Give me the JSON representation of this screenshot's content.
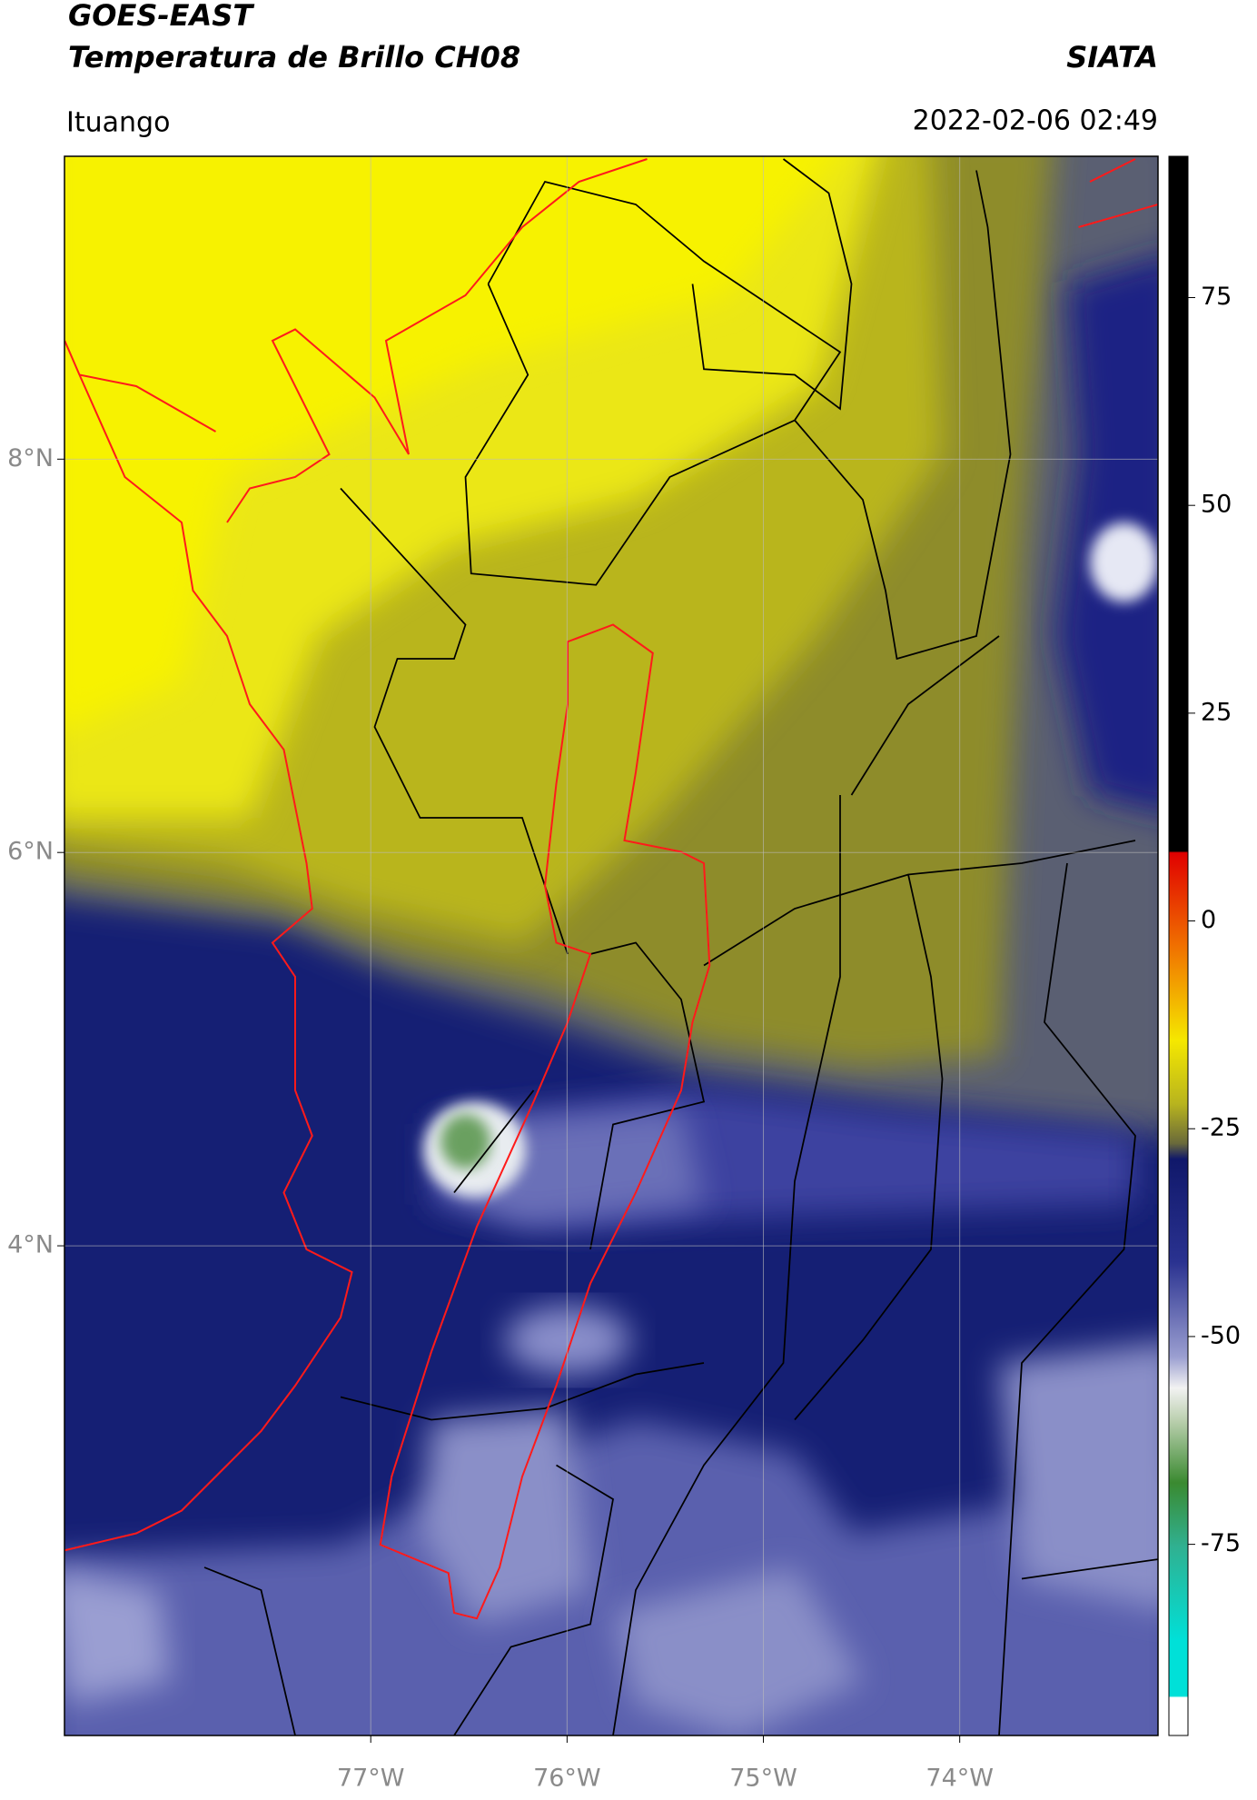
{
  "chart_data": {
    "type": "map",
    "title": "GOES-EAST",
    "subtitle": "Temperatura de Brillo CH08",
    "source": "SIATA",
    "region": "Ituango",
    "datetime": "2022-02-06 02:49",
    "xlim": [
      -78.56,
      -72.99
    ],
    "ylim": [
      1.51,
      9.54
    ],
    "xticks": [
      {
        "value": -77,
        "label": "77°W"
      },
      {
        "value": -76,
        "label": "76°W"
      },
      {
        "value": -75,
        "label": "75°W"
      },
      {
        "value": -74,
        "label": "74°W"
      }
    ],
    "yticks": [
      {
        "value": 8,
        "label": "8°N"
      },
      {
        "value": 6,
        "label": "6°N"
      },
      {
        "value": 4,
        "label": "4°N"
      }
    ],
    "grid": true,
    "colorbar": {
      "lim": [
        -98,
        92
      ],
      "ticks": [
        75,
        50,
        25,
        0,
        -25,
        -50,
        -75
      ]
    }
  }
}
